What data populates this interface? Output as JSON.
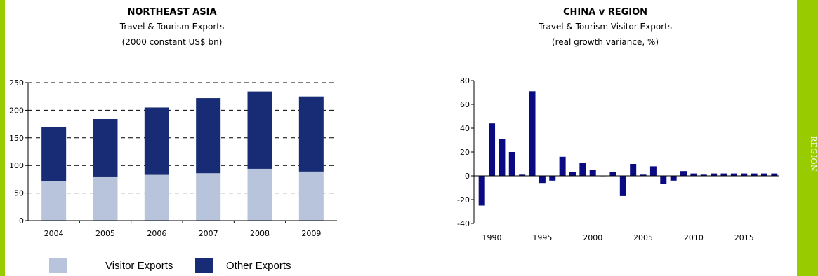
{
  "colors": {
    "accent_green": "#99cc00",
    "visitor_exports": "#b8c4dc",
    "other_exports": "#172c74",
    "growth_bars": "#0a0a82"
  },
  "side_label": "REGION",
  "chart_data": [
    {
      "type": "bar",
      "stacked": true,
      "title": "NORTHEAST ASIA",
      "subtitle_1": "Travel & Tourism Exports",
      "subtitle_2": "(2000 constant US$ bn)",
      "categories": [
        "2004",
        "2005",
        "2006",
        "2007",
        "2008",
        "2009"
      ],
      "series": [
        {
          "name": "Visitor Exports",
          "values": [
            72,
            80,
            83,
            86,
            94,
            89
          ]
        },
        {
          "name": "Other Exports",
          "values": [
            98,
            104,
            122,
            136,
            140,
            136
          ]
        }
      ],
      "ylim": [
        0,
        250
      ],
      "yticks": [
        0,
        50,
        100,
        150,
        200,
        250
      ],
      "grid": "dashed",
      "legend": "bottom"
    },
    {
      "type": "bar",
      "title": "CHINA v REGION",
      "subtitle_1": "Travel & Tourism Visitor Exports",
      "subtitle_2": "(real growth variance, %)",
      "x": [
        1989,
        1990,
        1991,
        1992,
        1993,
        1994,
        1995,
        1996,
        1997,
        1998,
        1999,
        2000,
        2001,
        2002,
        2003,
        2004,
        2005,
        2006,
        2007,
        2008,
        2009,
        2010,
        2011,
        2012,
        2013,
        2014,
        2015,
        2016,
        2017,
        2018
      ],
      "values": [
        -25,
        44,
        31,
        20,
        1,
        71,
        -6,
        -4,
        16,
        3,
        11,
        5,
        0,
        3,
        -17,
        10,
        1,
        8,
        -7,
        -4,
        4,
        2,
        1,
        2,
        2,
        2,
        2,
        2,
        2,
        2
      ],
      "ylim": [
        -40,
        80
      ],
      "yticks": [
        -40,
        -20,
        0,
        20,
        40,
        60,
        80
      ],
      "xtick_labels": [
        "1990",
        "1995",
        "2000",
        "2005",
        "2010",
        "2015"
      ],
      "grid": false
    }
  ]
}
